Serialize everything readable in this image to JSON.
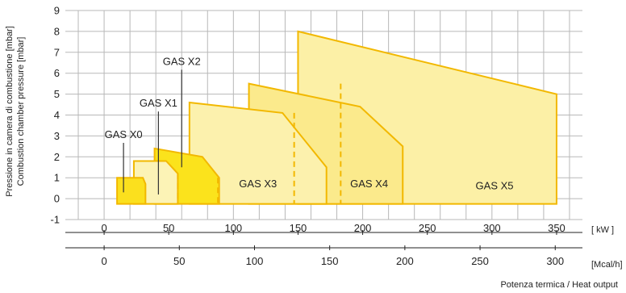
{
  "chart_data": {
    "type": "area",
    "ylabel_lines": [
      "Pressione in camera di combustione [mbar]",
      "Combustion chamber pressure [mbar]"
    ],
    "xlabel": "Potenza termica / Heat output",
    "kw_axis": {
      "unit": "[ kW ]",
      "range": [
        -30,
        370
      ],
      "ticks": [
        0,
        50,
        100,
        150,
        200,
        250,
        300,
        350
      ]
    },
    "mcal_axis": {
      "unit": "[Mcal/h]",
      "range": [
        -25.8,
        318.1
      ],
      "ticks": [
        0,
        50,
        100,
        150,
        200,
        250,
        300
      ]
    },
    "y_axis": {
      "range": [
        -1,
        9
      ],
      "ticks": [
        -1,
        0,
        1,
        2,
        3,
        4,
        5,
        6,
        7,
        8,
        9
      ]
    },
    "grid": true,
    "series": [
      {
        "name": "GAS X5",
        "fill": "#fcf0a6",
        "polygon": [
          [
            150,
            8.0
          ],
          [
            350,
            5.0
          ],
          [
            350,
            -0.25
          ],
          [
            150,
            -0.25
          ]
        ]
      },
      {
        "name": "GAS X4",
        "fill": "#fbea8c",
        "polygon": [
          [
            112,
            5.5
          ],
          [
            198,
            4.4
          ],
          [
            231,
            2.5
          ],
          [
            231,
            -0.25
          ],
          [
            112,
            -0.25
          ]
        ]
      },
      {
        "name": "GAS X3",
        "fill": "#fcf1ad",
        "polygon": [
          [
            66,
            4.6
          ],
          [
            138,
            4.1
          ],
          [
            172,
            1.5
          ],
          [
            172,
            -0.25
          ],
          [
            66,
            -0.25
          ]
        ]
      },
      {
        "name": "GAS X2",
        "fill": "#fbe31c",
        "polygon": [
          [
            39,
            2.4
          ],
          [
            76,
            2.0
          ],
          [
            89,
            1.0
          ],
          [
            89,
            -0.25
          ],
          [
            39,
            -0.25
          ]
        ]
      },
      {
        "name": "GAS X1",
        "fill": "#fcf3b6",
        "polygon": [
          [
            23,
            1.8
          ],
          [
            48,
            1.8
          ],
          [
            57,
            1.2
          ],
          [
            57,
            -0.25
          ],
          [
            23,
            -0.25
          ]
        ]
      },
      {
        "name": "GAS X0",
        "fill": "#fbe01e",
        "polygon": [
          [
            10,
            1.0
          ],
          [
            30,
            1.0
          ],
          [
            32,
            0.7
          ],
          [
            32,
            -0.25
          ],
          [
            10,
            -0.25
          ]
        ]
      }
    ],
    "series_labels": [
      {
        "name": "GAS X0",
        "at": [
          15,
          2.9
        ],
        "leader_to": [
          15,
          0.3
        ]
      },
      {
        "name": "GAS X1",
        "at": [
          42,
          4.4
        ],
        "leader_to": [
          42,
          0.2
        ]
      },
      {
        "name": "GAS X2",
        "at": [
          60,
          6.4
        ],
        "leader_to": [
          60,
          1.5
        ]
      },
      {
        "name": "GAS X3",
        "at": [
          119,
          0.55
        ],
        "leader_to": null
      },
      {
        "name": "GAS X4",
        "at": [
          205,
          0.55
        ],
        "leader_to": null
      },
      {
        "name": "GAS X5",
        "at": [
          302,
          0.45
        ],
        "leader_to": null
      }
    ],
    "dashed_verticals": [
      {
        "x": 57,
        "y_top": 1.2
      },
      {
        "x": 88,
        "y_top": 1.0
      },
      {
        "x": 147,
        "y_top": 4.1
      },
      {
        "x": 183,
        "y_top": 5.5
      }
    ]
  }
}
